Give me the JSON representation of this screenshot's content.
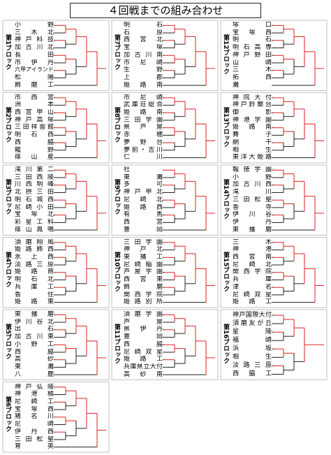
{
  "title": "４回戦までの組み合わせ",
  "blocks": [
    {
      "label": "第1ブロック",
      "teams": [
        "小野",
        "三木北",
        "神戸科技",
        "加古川北",
        "長田",
        "市伊丹",
        "六甲アイランド",
        "松陽",
        "飾磨工"
      ]
    },
    {
      "label": "第2ブロック",
      "teams": [
        "市西宮",
        "洲本",
        "西宮甲山",
        "神戸高塚",
        "三田祥雲館",
        "明石西",
        "西脇",
        "龍野",
        "篠山産"
      ]
    },
    {
      "label": "第3ブロック",
      "teams": [
        "滝川第二",
        "三田西陵",
        "川西明峰",
        "北摂三田",
        "明石城西",
        "尼崎小田",
        "宝塚北",
        "彩星工科",
        "篠山鳳鳴"
      ]
    },
    {
      "label": "第4ブロック",
      "teams": [
        "須磨翔風",
        "姫路飾西",
        "氷上西",
        "淡路三原",
        "姫路商",
        "明石北",
        "兵庫工",
        "香住",
        "姫路東"
      ]
    },
    {
      "label": "第5ブロック",
      "teams": [
        "東播磨",
        "伊川谷北",
        "出石",
        "加古川東",
        "小野工",
        "西脇",
        "高砂",
        "東灘",
        "八鹿"
      ]
    },
    {
      "label": "第6ブロック",
      "teams": [
        "神戸弘陵",
        "神港橘",
        "尼崎工",
        "宝塚西",
        "猪名川",
        "尼崎",
        "伊丹西",
        "三田松聖",
        "育英"
      ]
    },
    {
      "label": "第7ブロック",
      "teams": [
        "明石",
        "石原",
        "西宮北",
        "宝塚",
        "加古川南",
        "市尼崎",
        "生野",
        "上郡",
        "姫路南"
      ]
    },
    {
      "label": "第8ブロック",
      "teams": [
        "市尼崎",
        "武庫荘総合",
        "姫路南",
        "三田学園",
        "県芦屋",
        "赤穂",
        "夢野台",
        "夢前・吉川",
        "仁川"
      ]
    },
    {
      "label": "第9ブロック",
      "teams": [
        "社",
        "東灘",
        "多可",
        "神戸甲北",
        "尼崎北",
        "姫路西",
        "有馬",
        "西宮",
        "豊岡"
      ]
    },
    {
      "label": "第10ブロック",
      "teams": [
        "三田学園",
        "神戸北",
        "東播工",
        "尼崎稲園",
        "芦屋学園",
        "西宮東",
        "飾磨",
        "関西学院",
        "姫路別所"
      ]
    },
    {
      "label": "第11ブロック",
      "teams": [
        "須磨学園",
        "芦屋",
        "県伊丹",
        "豊岡",
        "西脇",
        "尼崎双星",
        "姫路工",
        "兵庫県立大付",
        "高砂南"
      ]
    },
    {
      "label": "第12ブロック",
      "teams": [
        "塚口",
        "宝塚西",
        "明石",
        "明石高専",
        "神戸野田",
        "山崎",
        "三木",
        "拓西",
        "灘"
      ]
    },
    {
      "label": "第13ブロック",
      "teams": [
        "神院大付",
        "神戸鈴蘭台",
        "御影",
        "神港学園",
        "姫路南",
        "舞子",
        "網干",
        "相生",
        "東洋大姫路"
      ]
    },
    {
      "label": "第14ブロック",
      "teams": [
        "報徳学園",
        "小野",
        "加古川西",
        "滝川",
        "三田松聖",
        "香寺",
        "伊川谷",
        "伊丹",
        "東播磨"
      ]
    },
    {
      "label": "第15ブロック",
      "teams": [
        "三木",
        "神港",
        "西宮南",
        "尼崎北",
        "関西学院",
        "兵庫",
        "津名",
        "尼崎双星",
        "姫路工"
      ]
    },
    {
      "label": "第16ブロック",
      "teams": [
        "神戸国際大付",
        "須磨友が丘",
        "星陵",
        "福崎",
        "浜坂",
        "相生",
        "淡路三原",
        "西脇工"
      ]
    }
  ]
}
